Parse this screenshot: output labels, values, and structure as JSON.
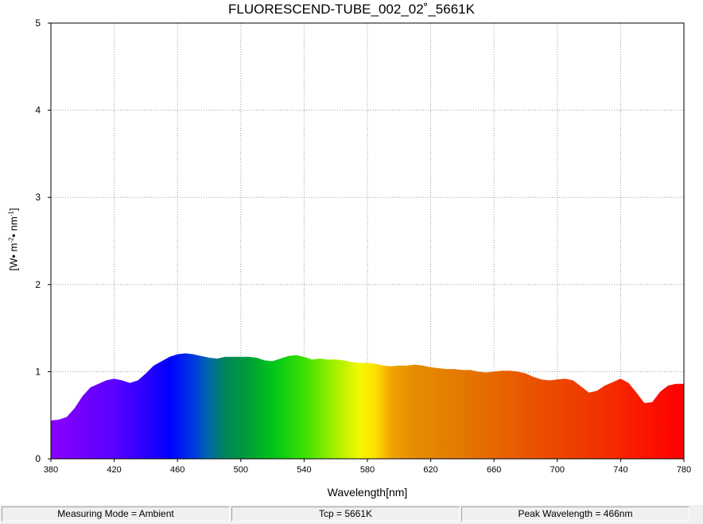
{
  "chart_data": {
    "type": "area",
    "title": "FLUORESCEND-TUBE_002_02˚_5661K",
    "xlabel": "Wavelength[nm]",
    "ylabel": {
      "base": "[W",
      "part1": "• m",
      "sup1": "-2",
      "part2": "• nm",
      "sup2": "-1",
      "end": "]"
    },
    "xlim": [
      380,
      780
    ],
    "ylim": [
      0,
      5
    ],
    "x_ticks": [
      380,
      420,
      460,
      500,
      540,
      580,
      620,
      660,
      700,
      740,
      780
    ],
    "y_ticks": [
      0,
      1,
      2,
      3,
      4,
      5
    ],
    "grid": true,
    "fill": "visible-spectrum gradient",
    "x": [
      380,
      385,
      390,
      395,
      400,
      405,
      410,
      415,
      420,
      425,
      430,
      435,
      440,
      445,
      450,
      455,
      460,
      465,
      470,
      475,
      480,
      485,
      490,
      495,
      500,
      505,
      510,
      515,
      520,
      525,
      530,
      535,
      540,
      545,
      550,
      555,
      560,
      565,
      570,
      575,
      580,
      585,
      590,
      595,
      600,
      605,
      610,
      615,
      620,
      625,
      630,
      635,
      640,
      645,
      650,
      655,
      660,
      665,
      670,
      675,
      680,
      685,
      690,
      695,
      700,
      705,
      710,
      715,
      720,
      725,
      730,
      735,
      740,
      745,
      750,
      755,
      760,
      765,
      770,
      775,
      780
    ],
    "y": [
      0.44,
      0.45,
      0.48,
      0.58,
      0.72,
      0.82,
      0.86,
      0.9,
      0.92,
      0.9,
      0.87,
      0.9,
      0.98,
      1.07,
      1.12,
      1.17,
      1.2,
      1.21,
      1.2,
      1.18,
      1.16,
      1.15,
      1.17,
      1.17,
      1.17,
      1.17,
      1.16,
      1.13,
      1.12,
      1.15,
      1.18,
      1.19,
      1.17,
      1.14,
      1.15,
      1.14,
      1.14,
      1.13,
      1.11,
      1.1,
      1.1,
      1.09,
      1.07,
      1.06,
      1.07,
      1.07,
      1.08,
      1.07,
      1.05,
      1.04,
      1.03,
      1.03,
      1.02,
      1.02,
      1.0,
      0.99,
      1.0,
      1.01,
      1.01,
      1.0,
      0.98,
      0.94,
      0.91,
      0.9,
      0.91,
      0.92,
      0.9,
      0.83,
      0.76,
      0.78,
      0.84,
      0.88,
      0.92,
      0.87,
      0.76,
      0.64,
      0.65,
      0.77,
      0.84,
      0.86,
      0.86
    ]
  },
  "status": {
    "mode": "Measuring Mode = Ambient",
    "tcp": "Tcp = 5661K",
    "peak": "Peak Wavelength = 466nm"
  }
}
